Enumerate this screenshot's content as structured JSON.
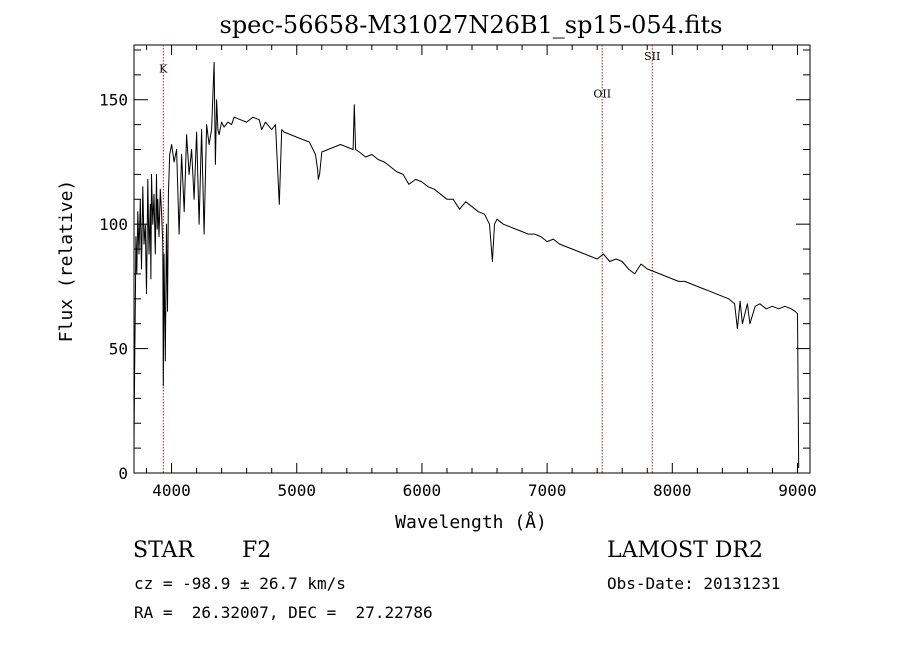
{
  "chart_data": {
    "type": "line",
    "title": "spec-56658-M31027N26B1_sp15-054.fits",
    "xlabel": "Wavelength (Å)",
    "ylabel": "Flux (relative)",
    "xlim": [
      3700,
      9100
    ],
    "ylim": [
      0,
      172
    ],
    "xticks": [
      4000,
      5000,
      6000,
      7000,
      8000,
      9000
    ],
    "yticks": [
      0,
      50,
      100,
      150
    ],
    "grid": false,
    "line_color": "#000000",
    "marker_color": "#b22222",
    "lines": [
      {
        "label": "K",
        "wavelength": 3934,
        "label_y": 161
      },
      {
        "label": "OII",
        "wavelength": 7440,
        "label_y": 151
      },
      {
        "label": "SII",
        "wavelength": 7840,
        "label_y": 166
      }
    ],
    "series": [
      {
        "x": [
          3700,
          3705,
          3712,
          3715,
          3722,
          3730,
          3740,
          3750,
          3760,
          3770,
          3780,
          3790,
          3800,
          3810,
          3820,
          3830,
          3835,
          3840,
          3850,
          3860,
          3870,
          3880,
          3885,
          3890,
          3900,
          3910,
          3920,
          3930,
          3934,
          3940,
          3950,
          3960,
          3968,
          3975,
          3985,
          4000,
          4020,
          4040,
          4060,
          4080,
          4101,
          4120,
          4140,
          4160,
          4180,
          4200,
          4220,
          4240,
          4260,
          4280,
          4300,
          4320,
          4340,
          4350,
          4360,
          4370,
          4380,
          4400,
          4420,
          4450,
          4480,
          4500,
          4550,
          4600,
          4650,
          4700,
          4720,
          4750,
          4800,
          4830,
          4861,
          4880,
          4900,
          4950,
          5000,
          5050,
          5100,
          5150,
          5167,
          5172,
          5183,
          5200,
          5250,
          5300,
          5350,
          5400,
          5450,
          5460,
          5470,
          5500,
          5550,
          5600,
          5650,
          5700,
          5750,
          5800,
          5850,
          5895,
          5950,
          6000,
          6050,
          6100,
          6150,
          6200,
          6250,
          6300,
          6350,
          6400,
          6450,
          6500,
          6540,
          6563,
          6580,
          6600,
          6650,
          6700,
          6750,
          6800,
          6850,
          6900,
          6950,
          7000,
          7050,
          7100,
          7150,
          7200,
          7250,
          7300,
          7350,
          7400,
          7450,
          7500,
          7550,
          7600,
          7650,
          7700,
          7750,
          7800,
          7850,
          7900,
          7950,
          8000,
          8050,
          8100,
          8150,
          8200,
          8250,
          8300,
          8350,
          8400,
          8450,
          8498,
          8520,
          8542,
          8560,
          8600,
          8620,
          8662,
          8700,
          8750,
          8800,
          8850,
          8900,
          8950,
          8980,
          9000,
          9010
        ],
        "y": [
          10,
          40,
          75,
          95,
          80,
          105,
          88,
          110,
          82,
          115,
          92,
          100,
          72,
          118,
          88,
          108,
          78,
          120,
          100,
          112,
          88,
          120,
          98,
          110,
          95,
          114,
          105,
          92,
          35,
          88,
          45,
          100,
          65,
          112,
          128,
          132,
          125,
          130,
          96,
          128,
          105,
          136,
          120,
          130,
          110,
          137,
          100,
          138,
          96,
          140,
          132,
          138,
          165,
          124,
          150,
          138,
          136,
          141,
          139,
          141,
          140,
          143,
          142,
          141,
          143,
          142,
          138,
          141,
          138,
          140,
          108,
          138,
          137,
          136,
          135,
          134,
          133,
          128,
          122,
          118,
          120,
          129,
          130,
          131,
          132,
          131,
          130,
          148,
          130,
          129,
          127,
          128,
          126,
          125,
          123,
          121,
          120,
          116,
          118,
          117,
          115,
          114,
          112,
          110,
          110,
          106,
          109,
          107,
          105,
          104,
          100,
          85,
          100,
          102,
          100,
          99,
          98,
          97,
          96,
          96,
          95,
          93,
          94,
          92,
          91,
          90,
          89,
          88,
          87,
          86,
          88,
          85,
          86,
          85,
          82,
          80,
          84,
          82,
          81,
          80,
          79,
          78,
          77,
          77,
          76,
          75,
          74,
          73,
          72,
          71,
          70,
          68,
          58,
          69,
          60,
          68,
          60,
          67,
          68,
          66,
          67,
          66,
          67,
          66,
          65,
          64,
          2
        ]
      }
    ]
  },
  "footer": {
    "type_label": "STAR",
    "subclass": "F2",
    "cz": "cz = -98.9 ± 26.7 km/s",
    "coords": "RA =  26.32007, DEC =  27.22786",
    "survey": "LAMOST DR2",
    "obs_date": "Obs-Date: 20131231"
  }
}
